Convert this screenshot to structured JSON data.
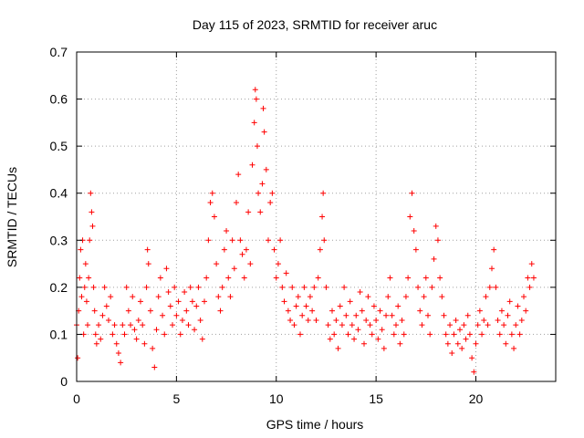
{
  "chart_data": {
    "type": "scatter",
    "title": "Day 115 of 2023, SRMTID for receiver aruc",
    "xlabel": "GPS time / hours",
    "ylabel": "SRMTID / TECUs",
    "xlim": [
      0,
      24
    ],
    "ylim": [
      0,
      0.7
    ],
    "xticks": [
      0,
      5,
      10,
      15,
      20
    ],
    "xtick_labels": [
      "0",
      "5",
      "10",
      "15",
      "20"
    ],
    "yticks": [
      0,
      0.1,
      0.2,
      0.3,
      0.4,
      0.5,
      0.6,
      0.7
    ],
    "ytick_labels": [
      "0",
      "0.1",
      "0.2",
      "0.3",
      "0.4",
      "0.5",
      "0.6",
      "0.7"
    ],
    "grid": true,
    "marker": "+",
    "series_color": "#ff0000",
    "x_extent_hours": [
      0,
      22.9
    ],
    "series": [
      {
        "name": "SRMTID",
        "points": [
          [
            0.0,
            0.12
          ],
          [
            0.05,
            0.05
          ],
          [
            0.1,
            0.15
          ],
          [
            0.15,
            0.22
          ],
          [
            0.2,
            0.28
          ],
          [
            0.25,
            0.18
          ],
          [
            0.3,
            0.3
          ],
          [
            0.35,
            0.1
          ],
          [
            0.4,
            0.2
          ],
          [
            0.45,
            0.25
          ],
          [
            0.5,
            0.17
          ],
          [
            0.55,
            0.12
          ],
          [
            0.6,
            0.22
          ],
          [
            0.65,
            0.3
          ],
          [
            0.7,
            0.4
          ],
          [
            0.75,
            0.36
          ],
          [
            0.8,
            0.33
          ],
          [
            0.85,
            0.2
          ],
          [
            0.9,
            0.15
          ],
          [
            0.95,
            0.1
          ],
          [
            1.0,
            0.08
          ],
          [
            1.1,
            0.12
          ],
          [
            1.2,
            0.09
          ],
          [
            1.3,
            0.14
          ],
          [
            1.4,
            0.2
          ],
          [
            1.5,
            0.16
          ],
          [
            1.6,
            0.13
          ],
          [
            1.7,
            0.18
          ],
          [
            1.8,
            0.1
          ],
          [
            1.9,
            0.12
          ],
          [
            2.0,
            0.08
          ],
          [
            2.1,
            0.06
          ],
          [
            2.2,
            0.04
          ],
          [
            2.3,
            0.12
          ],
          [
            2.4,
            0.1
          ],
          [
            2.5,
            0.2
          ],
          [
            2.6,
            0.15
          ],
          [
            2.7,
            0.12
          ],
          [
            2.8,
            0.18
          ],
          [
            2.9,
            0.11
          ],
          [
            3.0,
            0.09
          ],
          [
            3.1,
            0.13
          ],
          [
            3.2,
            0.17
          ],
          [
            3.3,
            0.12
          ],
          [
            3.4,
            0.08
          ],
          [
            3.5,
            0.2
          ],
          [
            3.55,
            0.28
          ],
          [
            3.6,
            0.25
          ],
          [
            3.7,
            0.15
          ],
          [
            3.8,
            0.07
          ],
          [
            3.9,
            0.03
          ],
          [
            4.0,
            0.11
          ],
          [
            4.1,
            0.18
          ],
          [
            4.2,
            0.22
          ],
          [
            4.3,
            0.14
          ],
          [
            4.4,
            0.1
          ],
          [
            4.5,
            0.24
          ],
          [
            4.6,
            0.19
          ],
          [
            4.7,
            0.16
          ],
          [
            4.8,
            0.12
          ],
          [
            4.9,
            0.2
          ],
          [
            5.0,
            0.14
          ],
          [
            5.1,
            0.17
          ],
          [
            5.2,
            0.1
          ],
          [
            5.3,
            0.13
          ],
          [
            5.4,
            0.19
          ],
          [
            5.5,
            0.15
          ],
          [
            5.6,
            0.12
          ],
          [
            5.7,
            0.2
          ],
          [
            5.8,
            0.17
          ],
          [
            5.9,
            0.11
          ],
          [
            6.0,
            0.16
          ],
          [
            6.1,
            0.2
          ],
          [
            6.2,
            0.13
          ],
          [
            6.3,
            0.09
          ],
          [
            6.4,
            0.17
          ],
          [
            6.5,
            0.22
          ],
          [
            6.6,
            0.3
          ],
          [
            6.7,
            0.38
          ],
          [
            6.8,
            0.4
          ],
          [
            6.9,
            0.35
          ],
          [
            7.0,
            0.25
          ],
          [
            7.1,
            0.18
          ],
          [
            7.2,
            0.15
          ],
          [
            7.3,
            0.2
          ],
          [
            7.4,
            0.28
          ],
          [
            7.5,
            0.32
          ],
          [
            7.6,
            0.22
          ],
          [
            7.7,
            0.18
          ],
          [
            7.8,
            0.3
          ],
          [
            7.9,
            0.24
          ],
          [
            8.0,
            0.38
          ],
          [
            8.1,
            0.44
          ],
          [
            8.2,
            0.3
          ],
          [
            8.3,
            0.27
          ],
          [
            8.4,
            0.22
          ],
          [
            8.5,
            0.28
          ],
          [
            8.6,
            0.36
          ],
          [
            8.7,
            0.25
          ],
          [
            8.8,
            0.46
          ],
          [
            8.9,
            0.55
          ],
          [
            8.95,
            0.62
          ],
          [
            9.0,
            0.6
          ],
          [
            9.05,
            0.5
          ],
          [
            9.1,
            0.4
          ],
          [
            9.2,
            0.36
          ],
          [
            9.3,
            0.42
          ],
          [
            9.35,
            0.58
          ],
          [
            9.4,
            0.53
          ],
          [
            9.5,
            0.45
          ],
          [
            9.6,
            0.3
          ],
          [
            9.7,
            0.38
          ],
          [
            9.8,
            0.4
          ],
          [
            9.9,
            0.28
          ],
          [
            10.0,
            0.22
          ],
          [
            10.1,
            0.25
          ],
          [
            10.2,
            0.3
          ],
          [
            10.3,
            0.2
          ],
          [
            10.4,
            0.17
          ],
          [
            10.5,
            0.23
          ],
          [
            10.6,
            0.15
          ],
          [
            10.7,
            0.13
          ],
          [
            10.8,
            0.2
          ],
          [
            10.9,
            0.12
          ],
          [
            11.0,
            0.16
          ],
          [
            11.1,
            0.18
          ],
          [
            11.2,
            0.1
          ],
          [
            11.3,
            0.14
          ],
          [
            11.4,
            0.2
          ],
          [
            11.5,
            0.16
          ],
          [
            11.6,
            0.13
          ],
          [
            11.7,
            0.18
          ],
          [
            11.8,
            0.15
          ],
          [
            11.9,
            0.2
          ],
          [
            12.0,
            0.13
          ],
          [
            12.1,
            0.22
          ],
          [
            12.2,
            0.28
          ],
          [
            12.3,
            0.35
          ],
          [
            12.35,
            0.4
          ],
          [
            12.4,
            0.3
          ],
          [
            12.5,
            0.2
          ],
          [
            12.6,
            0.12
          ],
          [
            12.7,
            0.09
          ],
          [
            12.8,
            0.15
          ],
          [
            12.9,
            0.1
          ],
          [
            13.0,
            0.13
          ],
          [
            13.1,
            0.07
          ],
          [
            13.2,
            0.16
          ],
          [
            13.3,
            0.12
          ],
          [
            13.4,
            0.2
          ],
          [
            13.5,
            0.14
          ],
          [
            13.6,
            0.1
          ],
          [
            13.7,
            0.17
          ],
          [
            13.8,
            0.12
          ],
          [
            13.9,
            0.09
          ],
          [
            14.0,
            0.14
          ],
          [
            14.1,
            0.11
          ],
          [
            14.2,
            0.19
          ],
          [
            14.3,
            0.15
          ],
          [
            14.4,
            0.08
          ],
          [
            14.5,
            0.13
          ],
          [
            14.6,
            0.18
          ],
          [
            14.7,
            0.12
          ],
          [
            14.8,
            0.1
          ],
          [
            14.9,
            0.16
          ],
          [
            15.0,
            0.13
          ],
          [
            15.1,
            0.09
          ],
          [
            15.2,
            0.15
          ],
          [
            15.3,
            0.11
          ],
          [
            15.4,
            0.07
          ],
          [
            15.5,
            0.14
          ],
          [
            15.6,
            0.18
          ],
          [
            15.7,
            0.22
          ],
          [
            15.8,
            0.14
          ],
          [
            15.9,
            0.1
          ],
          [
            16.0,
            0.12
          ],
          [
            16.1,
            0.16
          ],
          [
            16.2,
            0.08
          ],
          [
            16.3,
            0.13
          ],
          [
            16.4,
            0.1
          ],
          [
            16.5,
            0.18
          ],
          [
            16.6,
            0.22
          ],
          [
            16.7,
            0.35
          ],
          [
            16.8,
            0.4
          ],
          [
            16.9,
            0.32
          ],
          [
            17.0,
            0.28
          ],
          [
            17.1,
            0.2
          ],
          [
            17.2,
            0.15
          ],
          [
            17.3,
            0.12
          ],
          [
            17.4,
            0.18
          ],
          [
            17.5,
            0.22
          ],
          [
            17.6,
            0.14
          ],
          [
            17.7,
            0.1
          ],
          [
            17.8,
            0.2
          ],
          [
            17.9,
            0.26
          ],
          [
            18.0,
            0.33
          ],
          [
            18.1,
            0.3
          ],
          [
            18.2,
            0.22
          ],
          [
            18.3,
            0.18
          ],
          [
            18.4,
            0.14
          ],
          [
            18.5,
            0.1
          ],
          [
            18.6,
            0.08
          ],
          [
            18.7,
            0.12
          ],
          [
            18.8,
            0.06
          ],
          [
            18.9,
            0.1
          ],
          [
            19.0,
            0.13
          ],
          [
            19.1,
            0.08
          ],
          [
            19.2,
            0.11
          ],
          [
            19.3,
            0.07
          ],
          [
            19.4,
            0.12
          ],
          [
            19.5,
            0.09
          ],
          [
            19.6,
            0.14
          ],
          [
            19.7,
            0.1
          ],
          [
            19.8,
            0.05
          ],
          [
            19.9,
            0.02
          ],
          [
            20.0,
            0.08
          ],
          [
            20.1,
            0.12
          ],
          [
            20.2,
            0.15
          ],
          [
            20.3,
            0.1
          ],
          [
            20.4,
            0.13
          ],
          [
            20.5,
            0.18
          ],
          [
            20.6,
            0.12
          ],
          [
            20.7,
            0.2
          ],
          [
            20.8,
            0.24
          ],
          [
            20.9,
            0.28
          ],
          [
            21.0,
            0.2
          ],
          [
            21.1,
            0.13
          ],
          [
            21.2,
            0.1
          ],
          [
            21.3,
            0.15
          ],
          [
            21.4,
            0.12
          ],
          [
            21.5,
            0.08
          ],
          [
            21.6,
            0.14
          ],
          [
            21.7,
            0.17
          ],
          [
            21.8,
            0.1
          ],
          [
            21.9,
            0.07
          ],
          [
            22.0,
            0.12
          ],
          [
            22.1,
            0.16
          ],
          [
            22.2,
            0.1
          ],
          [
            22.3,
            0.13
          ],
          [
            22.4,
            0.18
          ],
          [
            22.5,
            0.15
          ],
          [
            22.6,
            0.22
          ],
          [
            22.7,
            0.2
          ],
          [
            22.8,
            0.25
          ],
          [
            22.9,
            0.22
          ]
        ]
      }
    ]
  }
}
